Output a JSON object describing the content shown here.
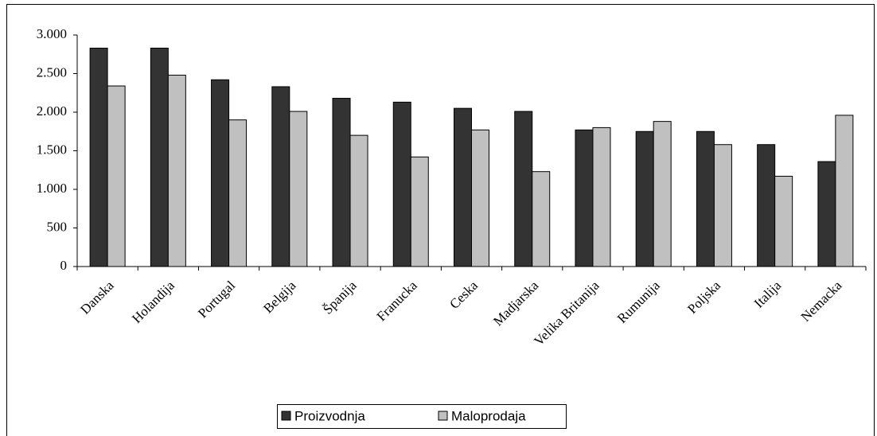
{
  "chart_data": {
    "type": "bar",
    "categories": [
      "Danska",
      "Holandija",
      "Portugal",
      "Belgija",
      "Španija",
      "Franucka",
      "Ceska",
      "Madjarska",
      "Velika Britanija",
      "Rumunija",
      "Poljska",
      "Italija",
      "Nemacka"
    ],
    "series": [
      {
        "name": "Proizvodnja",
        "color": "#333333",
        "values": [
          2830,
          2830,
          2420,
          2330,
          2180,
          2130,
          2050,
          2010,
          1770,
          1750,
          1750,
          1580,
          1360
        ]
      },
      {
        "name": "Maloprodaja",
        "color": "#c0c0c0",
        "values": [
          2340,
          2480,
          1900,
          2010,
          1700,
          1420,
          1770,
          1230,
          1800,
          1880,
          1580,
          1170,
          1960
        ]
      }
    ],
    "ylim": [
      0,
      3000
    ],
    "yticks": [
      0,
      500,
      {
        "value": 1000,
        "label": "1.000"
      },
      {
        "value": 1500,
        "label": "1.500"
      },
      {
        "value": 2000,
        "label": "2.000"
      },
      {
        "value": 2500,
        "label": "2.500"
      },
      {
        "value": 3000,
        "label": "3.000"
      }
    ],
    "legend": "bottom"
  }
}
